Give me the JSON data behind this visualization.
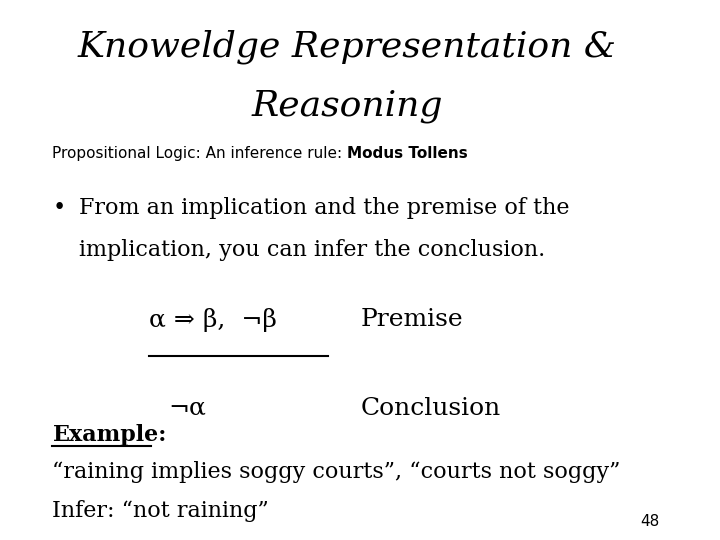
{
  "title_line1": "Knoweldge Representation &",
  "title_line2": "Reasoning",
  "subtitle_normal": "Propositional Logic: An inference rule: ",
  "subtitle_bold": "Modus Tollens",
  "bullet_text_line1": "From an implication and the premise of the",
  "bullet_text_line2": "implication, you can infer the conclusion.",
  "premise_label": "Premise",
  "premise_formula": "α ⇒ β,  ¬β",
  "conclusion_label": "Conclusion",
  "conclusion_formula": "¬α",
  "example_label": "Example:",
  "example_line1": "“raining implies soggy courts”, “courts not soggy”",
  "example_line2": "Infer: “not raining”",
  "page_number": "48",
  "bg_color": "#ffffff",
  "text_color": "#000000",
  "title_fontsize": 26,
  "subtitle_fontsize": 11,
  "body_fontsize": 16,
  "formula_fontsize": 18,
  "example_fontsize": 16,
  "page_fontsize": 11
}
